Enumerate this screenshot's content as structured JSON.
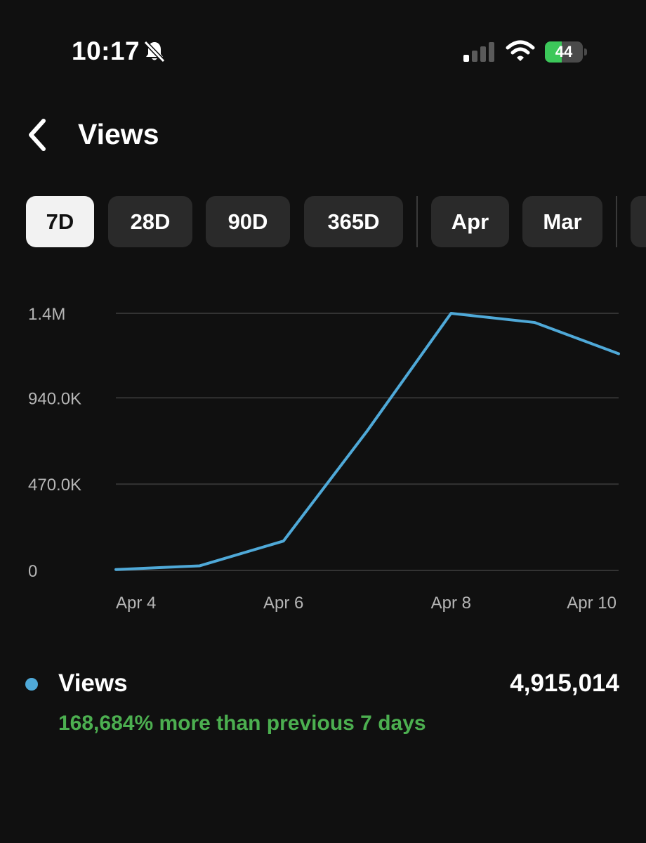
{
  "status_bar": {
    "time": "10:17",
    "battery_level": 44,
    "battery_label": "44",
    "icons": [
      "bell-slash-icon",
      "cellular-signal-icon",
      "wifi-icon",
      "battery-charging-icon"
    ]
  },
  "header": {
    "back_icon": "chevron-left-icon",
    "title": "Views"
  },
  "filters": {
    "selected": "7D",
    "chips": [
      "7D",
      "28D",
      "90D",
      "365D",
      "Apr",
      "Mar"
    ]
  },
  "colors": {
    "background": "#101010",
    "line": "#4fa9d8",
    "positive": "#4caf50",
    "chip": "#2a2a2a",
    "chip_selected": "#f2f2f2"
  },
  "chart_data": {
    "type": "line",
    "x": [
      "Apr 4",
      "Apr 5",
      "Apr 6",
      "Apr 7",
      "Apr 8",
      "Apr 9",
      "Apr 10"
    ],
    "x_tick_labels": [
      "Apr 4",
      "Apr 6",
      "Apr 8",
      "Apr 10"
    ],
    "series": [
      {
        "values": [
          5000,
          25000,
          160000,
          760000,
          1400000,
          1350000,
          1180000
        ]
      }
    ],
    "y_tick_values": [
      0,
      470000,
      940000,
      1400000
    ],
    "y_tick_labels": [
      "0",
      "470.0K",
      "940.0K",
      "1.4M"
    ],
    "ylim": [
      0,
      1400000
    ],
    "grid": true
  },
  "summary": {
    "label": "Views",
    "total": "4,915,014",
    "change": "168,684% more than previous 7 days"
  }
}
